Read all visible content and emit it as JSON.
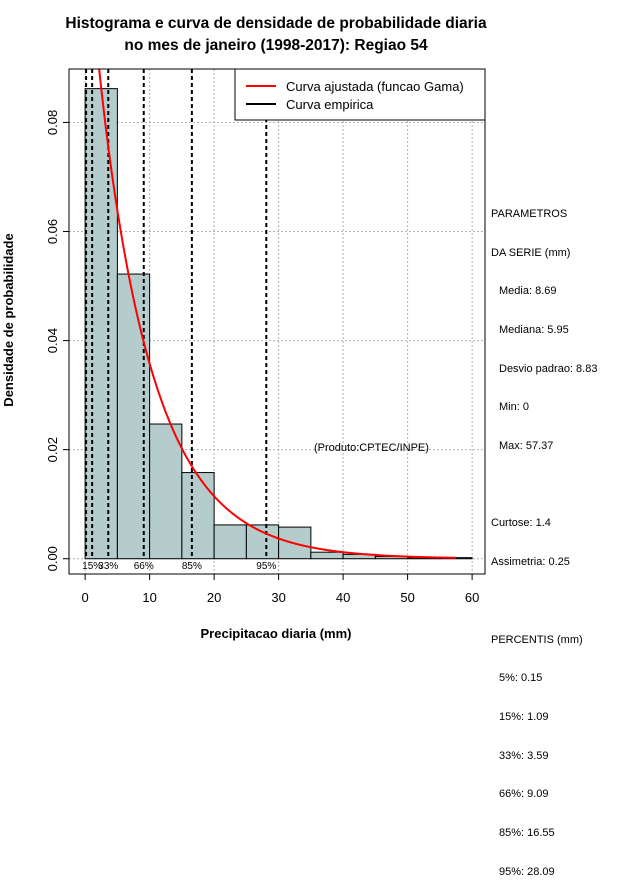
{
  "chart_data": {
    "type": "bar",
    "title": [
      "Histograma e curva de densidade de probabilidade diaria",
      "no mes de janeiro (1998-2017): Regiao 54"
    ],
    "xlabel": "Precipitacao diaria (mm)",
    "ylabel": "Densidade de probabilidade",
    "xlim": [
      -2.5,
      62
    ],
    "ylim": [
      -0.0028,
      0.0898
    ],
    "x_ticks": [
      0,
      10,
      20,
      30,
      40,
      50,
      60
    ],
    "y_ticks": [
      0.0,
      0.02,
      0.04,
      0.06,
      0.08
    ],
    "y_tick_labels": [
      "0.00",
      "0.02",
      "0.04",
      "0.06",
      "0.08"
    ],
    "grid": true,
    "bins": [
      {
        "x0": 0,
        "x1": 5,
        "density": 0.0862
      },
      {
        "x0": 5,
        "x1": 10,
        "density": 0.0522
      },
      {
        "x0": 10,
        "x1": 15,
        "density": 0.0247
      },
      {
        "x0": 15,
        "x1": 20,
        "density": 0.0158
      },
      {
        "x0": 20,
        "x1": 25,
        "density": 0.0062
      },
      {
        "x0": 25,
        "x1": 30,
        "density": 0.0062
      },
      {
        "x0": 30,
        "x1": 35,
        "density": 0.0058
      },
      {
        "x0": 35,
        "x1": 40,
        "density": 0.0012
      },
      {
        "x0": 40,
        "x1": 45,
        "density": 0.0008
      },
      {
        "x0": 45,
        "x1": 50,
        "density": 0.0004
      },
      {
        "x0": 50,
        "x1": 55,
        "density": 0.0002
      },
      {
        "x0": 55,
        "x1": 60,
        "density": 0.0002
      }
    ],
    "fitted_curve": {
      "name": "Curva ajustada (funcao Gama)",
      "color": "#ff0000",
      "shape": 0.97,
      "scale": 8.95
    },
    "empirical_curve": {
      "name": "Curva empirica",
      "color": "#000000"
    },
    "legend_position": "top-right",
    "percentile_lines": [
      {
        "label": "5%",
        "value": 0.15,
        "show_label": false
      },
      {
        "label": "15%",
        "value": 1.09,
        "show_label": true
      },
      {
        "label": "33%",
        "value": 3.59,
        "show_label": true
      },
      {
        "label": "66%",
        "value": 9.09,
        "show_label": true
      },
      {
        "label": "85%",
        "value": 16.55,
        "show_label": true
      },
      {
        "label": "95%",
        "value": 28.09,
        "show_label": true
      }
    ],
    "annotation": "(Produto:CPTEC/INPE)",
    "colors": {
      "bar_fill": "#b4cccc",
      "bar_stroke": "#000000",
      "grid": "#b0b0b0"
    }
  },
  "sidebar": {
    "header1": "PARAMETROS",
    "header2": "DA SERIE (mm)",
    "media": "Media: 8.69",
    "mediana": "Mediana: 5.95",
    "desvio": "Desvio padrao: 8.83",
    "min": "Min: 0",
    "max": "Max: 57.37",
    "curtose": "Curtose: 1.4",
    "assimetria": "Assimetria: 0.25",
    "percentis_header": "PERCENTIS (mm)",
    "p5": "5%: 0.15",
    "p15": "15%: 1.09",
    "p33": "33%: 3.59",
    "p66": "66%: 9.09",
    "p85": "85%: 16.55",
    "p95": "95%: 28.09"
  }
}
